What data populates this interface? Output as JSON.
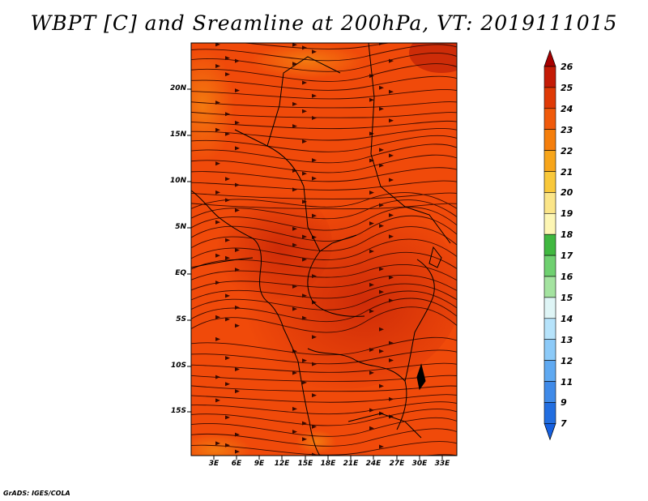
{
  "title": "WBPT [C] and Sreamline at 200hPa, VT: 2019111015",
  "credit": "GrADS: IGES/COLA",
  "map": {
    "lat_labels": [
      "20N",
      "15N",
      "10N",
      "5N",
      "EQ",
      "5S",
      "10S",
      "15S"
    ],
    "lon_labels": [
      "3E",
      "6E",
      "9E",
      "12E",
      "15E",
      "18E",
      "21E",
      "24E",
      "27E",
      "30E",
      "33E"
    ],
    "field": "wet-bulb potential temperature",
    "colors": {
      "base": "#f04a0a",
      "warm": "#d9300a",
      "hot": "#c42408",
      "cool": "#f0700d",
      "coast": "#000000"
    }
  },
  "colorbar": {
    "levels": [
      "26",
      "25",
      "24",
      "23",
      "22",
      "21",
      "20",
      "19",
      "18",
      "17",
      "16",
      "15",
      "14",
      "13",
      "12",
      "11",
      "9",
      "7"
    ],
    "colors": [
      "#a60000",
      "#c41b06",
      "#df3a06",
      "#f05a0b",
      "#f57e0b",
      "#f7a51a",
      "#f9c83a",
      "#fbe588",
      "#fdf6b4",
      "#40b840",
      "#6fd070",
      "#a4e3a0",
      "#dff5f6",
      "#b6e3fb",
      "#8ccaf8",
      "#5fa9f1",
      "#3f8ae8",
      "#226ee0",
      "#1660e0"
    ]
  }
}
